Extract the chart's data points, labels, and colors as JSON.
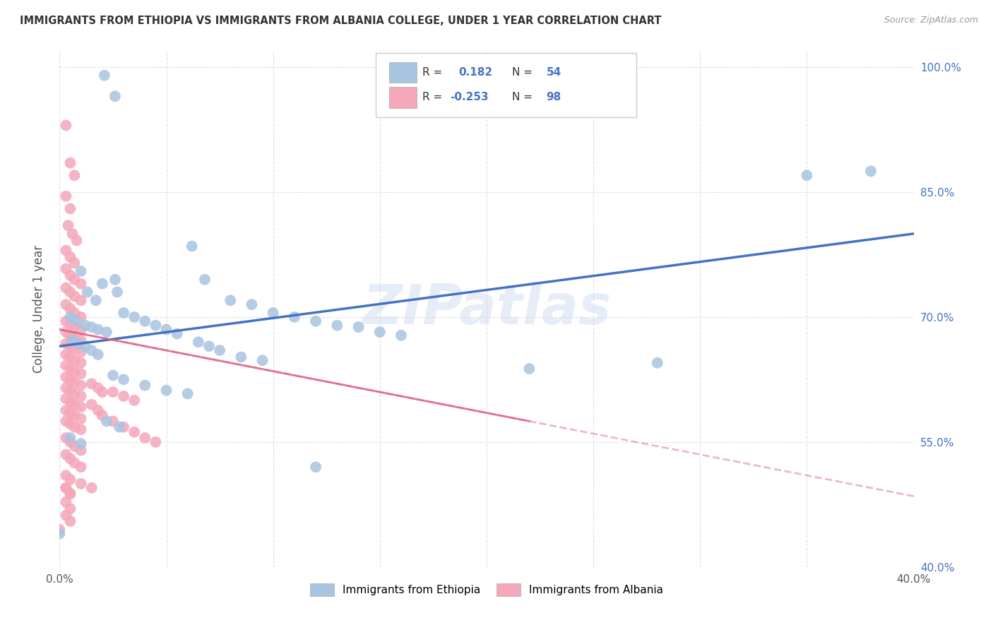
{
  "title": "IMMIGRANTS FROM ETHIOPIA VS IMMIGRANTS FROM ALBANIA COLLEGE, UNDER 1 YEAR CORRELATION CHART",
  "source": "Source: ZipAtlas.com",
  "ylabel": "College, Under 1 year",
  "xlim": [
    0.0,
    0.4
  ],
  "ylim": [
    0.4,
    1.02
  ],
  "yticks": [
    0.4,
    0.55,
    0.7,
    0.85,
    1.0
  ],
  "yticklabels": [
    "40.0%",
    "55.0%",
    "70.0%",
    "85.0%",
    "100.0%"
  ],
  "xtick_positions": [
    0.0,
    0.05,
    0.1,
    0.15,
    0.2,
    0.25,
    0.3,
    0.35,
    0.4
  ],
  "legend_labels": [
    "Immigrants from Ethiopia",
    "Immigrants from Albania"
  ],
  "ethiopia_color": "#a8c4e0",
  "albania_color": "#f4a7b9",
  "ethiopia_line_color": "#4472c4",
  "albania_line_color": "#e06080",
  "watermark": "ZIPatlas",
  "R_ethiopia": 0.182,
  "N_ethiopia": 54,
  "R_albania": -0.253,
  "N_albania": 98,
  "eth_line_x0": 0.0,
  "eth_line_y0": 0.665,
  "eth_line_x1": 0.4,
  "eth_line_y1": 0.8,
  "alb_line_x0": 0.0,
  "alb_line_y0": 0.685,
  "alb_line_x1": 0.22,
  "alb_line_y1": 0.575,
  "ethiopia_pts": [
    [
      0.021,
      0.99
    ],
    [
      0.026,
      0.965
    ],
    [
      0.062,
      0.785
    ],
    [
      0.068,
      0.745
    ],
    [
      0.01,
      0.755
    ],
    [
      0.013,
      0.73
    ],
    [
      0.017,
      0.72
    ],
    [
      0.02,
      0.74
    ],
    [
      0.026,
      0.745
    ],
    [
      0.027,
      0.73
    ],
    [
      0.08,
      0.72
    ],
    [
      0.09,
      0.715
    ],
    [
      0.1,
      0.705
    ],
    [
      0.11,
      0.7
    ],
    [
      0.12,
      0.695
    ],
    [
      0.13,
      0.69
    ],
    [
      0.14,
      0.688
    ],
    [
      0.15,
      0.682
    ],
    [
      0.16,
      0.678
    ],
    [
      0.03,
      0.705
    ],
    [
      0.035,
      0.7
    ],
    [
      0.04,
      0.695
    ],
    [
      0.045,
      0.69
    ],
    [
      0.05,
      0.685
    ],
    [
      0.055,
      0.68
    ],
    [
      0.065,
      0.67
    ],
    [
      0.07,
      0.665
    ],
    [
      0.075,
      0.66
    ],
    [
      0.085,
      0.652
    ],
    [
      0.095,
      0.648
    ],
    [
      0.005,
      0.7
    ],
    [
      0.008,
      0.695
    ],
    [
      0.012,
      0.69
    ],
    [
      0.015,
      0.688
    ],
    [
      0.018,
      0.685
    ],
    [
      0.022,
      0.682
    ],
    [
      0.006,
      0.672
    ],
    [
      0.009,
      0.668
    ],
    [
      0.012,
      0.665
    ],
    [
      0.015,
      0.66
    ],
    [
      0.018,
      0.655
    ],
    [
      0.025,
      0.63
    ],
    [
      0.03,
      0.625
    ],
    [
      0.04,
      0.618
    ],
    [
      0.05,
      0.612
    ],
    [
      0.06,
      0.608
    ],
    [
      0.022,
      0.575
    ],
    [
      0.028,
      0.568
    ],
    [
      0.35,
      0.87
    ],
    [
      0.38,
      0.875
    ],
    [
      0.22,
      0.638
    ],
    [
      0.28,
      0.645
    ],
    [
      0.005,
      0.555
    ],
    [
      0.01,
      0.548
    ],
    [
      0.12,
      0.52
    ],
    [
      0.0,
      0.44
    ]
  ],
  "albania_pts": [
    [
      0.003,
      0.93
    ],
    [
      0.005,
      0.885
    ],
    [
      0.007,
      0.87
    ],
    [
      0.003,
      0.845
    ],
    [
      0.005,
      0.83
    ],
    [
      0.004,
      0.81
    ],
    [
      0.006,
      0.8
    ],
    [
      0.008,
      0.792
    ],
    [
      0.003,
      0.78
    ],
    [
      0.005,
      0.772
    ],
    [
      0.007,
      0.765
    ],
    [
      0.003,
      0.758
    ],
    [
      0.005,
      0.75
    ],
    [
      0.007,
      0.745
    ],
    [
      0.01,
      0.74
    ],
    [
      0.003,
      0.735
    ],
    [
      0.005,
      0.73
    ],
    [
      0.007,
      0.725
    ],
    [
      0.01,
      0.72
    ],
    [
      0.003,
      0.715
    ],
    [
      0.005,
      0.71
    ],
    [
      0.007,
      0.705
    ],
    [
      0.01,
      0.7
    ],
    [
      0.003,
      0.695
    ],
    [
      0.005,
      0.692
    ],
    [
      0.007,
      0.688
    ],
    [
      0.01,
      0.685
    ],
    [
      0.003,
      0.682
    ],
    [
      0.005,
      0.678
    ],
    [
      0.007,
      0.675
    ],
    [
      0.01,
      0.672
    ],
    [
      0.003,
      0.668
    ],
    [
      0.005,
      0.665
    ],
    [
      0.007,
      0.662
    ],
    [
      0.01,
      0.658
    ],
    [
      0.003,
      0.655
    ],
    [
      0.005,
      0.652
    ],
    [
      0.007,
      0.648
    ],
    [
      0.01,
      0.645
    ],
    [
      0.003,
      0.642
    ],
    [
      0.005,
      0.638
    ],
    [
      0.007,
      0.635
    ],
    [
      0.01,
      0.632
    ],
    [
      0.003,
      0.628
    ],
    [
      0.005,
      0.625
    ],
    [
      0.007,
      0.622
    ],
    [
      0.01,
      0.618
    ],
    [
      0.003,
      0.615
    ],
    [
      0.005,
      0.612
    ],
    [
      0.007,
      0.608
    ],
    [
      0.01,
      0.605
    ],
    [
      0.003,
      0.602
    ],
    [
      0.005,
      0.598
    ],
    [
      0.007,
      0.595
    ],
    [
      0.01,
      0.592
    ],
    [
      0.003,
      0.588
    ],
    [
      0.005,
      0.585
    ],
    [
      0.007,
      0.582
    ],
    [
      0.01,
      0.578
    ],
    [
      0.003,
      0.575
    ],
    [
      0.005,
      0.572
    ],
    [
      0.007,
      0.568
    ],
    [
      0.01,
      0.565
    ],
    [
      0.015,
      0.62
    ],
    [
      0.018,
      0.615
    ],
    [
      0.02,
      0.61
    ],
    [
      0.015,
      0.595
    ],
    [
      0.018,
      0.588
    ],
    [
      0.02,
      0.582
    ],
    [
      0.025,
      0.61
    ],
    [
      0.03,
      0.605
    ],
    [
      0.035,
      0.6
    ],
    [
      0.025,
      0.575
    ],
    [
      0.03,
      0.568
    ],
    [
      0.035,
      0.562
    ],
    [
      0.04,
      0.555
    ],
    [
      0.045,
      0.55
    ],
    [
      0.003,
      0.555
    ],
    [
      0.005,
      0.55
    ],
    [
      0.007,
      0.545
    ],
    [
      0.01,
      0.54
    ],
    [
      0.003,
      0.535
    ],
    [
      0.005,
      0.53
    ],
    [
      0.007,
      0.525
    ],
    [
      0.01,
      0.52
    ],
    [
      0.003,
      0.51
    ],
    [
      0.005,
      0.505
    ],
    [
      0.003,
      0.495
    ],
    [
      0.005,
      0.488
    ],
    [
      0.003,
      0.478
    ],
    [
      0.005,
      0.47
    ],
    [
      0.003,
      0.462
    ],
    [
      0.005,
      0.455
    ],
    [
      0.0,
      0.445
    ],
    [
      0.003,
      0.495
    ],
    [
      0.005,
      0.488
    ],
    [
      0.01,
      0.5
    ],
    [
      0.015,
      0.495
    ]
  ]
}
